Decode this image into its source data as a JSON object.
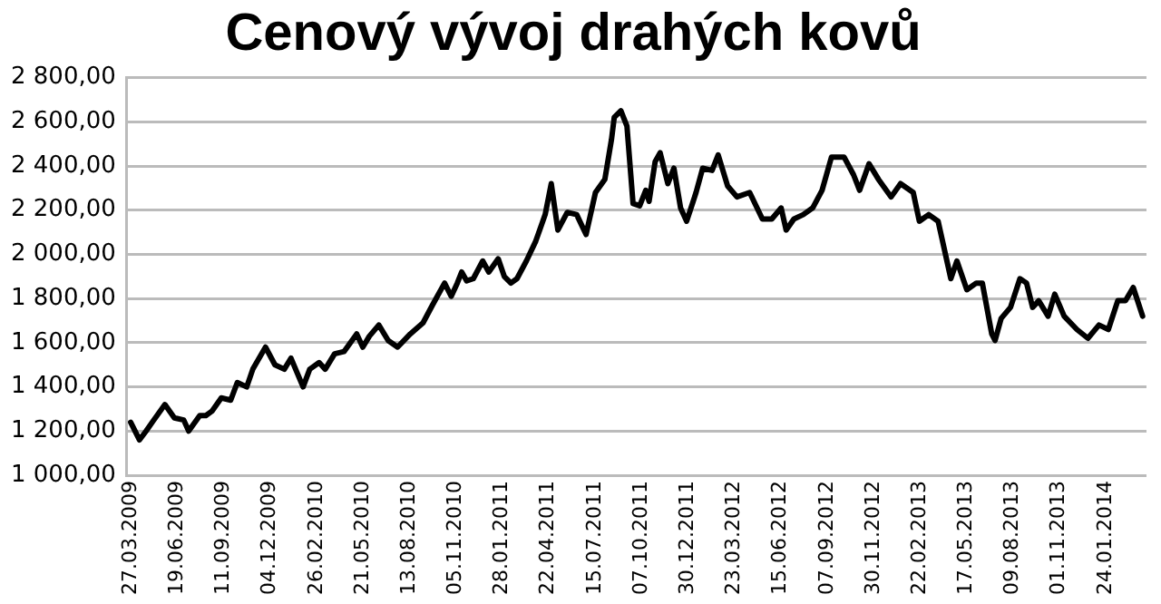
{
  "chart_data": {
    "type": "line",
    "title": "Cenový vývoj drahých kovů",
    "x": [
      "2009-03-27",
      "2009-04-12",
      "2009-04-24",
      "2009-05-05",
      "2009-05-28",
      "2009-06-14",
      "2009-07-01",
      "2009-07-10",
      "2009-07-30",
      "2009-08-10",
      "2009-08-21",
      "2009-09-07",
      "2009-09-24",
      "2009-10-06",
      "2009-10-23",
      "2009-11-03",
      "2009-11-26",
      "2009-12-13",
      "2009-12-30",
      "2010-01-11",
      "2010-02-02",
      "2010-02-14",
      "2010-03-03",
      "2010-03-14",
      "2010-03-31",
      "2010-04-17",
      "2010-05-10",
      "2010-05-21",
      "2010-06-02",
      "2010-06-19",
      "2010-07-06",
      "2010-07-23",
      "2010-08-15",
      "2010-09-07",
      "2010-09-24",
      "2010-10-16",
      "2010-10-28",
      "2010-11-08",
      "2010-11-16",
      "2010-11-25",
      "2010-12-07",
      "2010-12-24",
      "2011-01-04",
      "2011-01-21",
      "2011-02-01",
      "2011-02-13",
      "2011-02-24",
      "2011-03-13",
      "2011-03-30",
      "2011-04-16",
      "2011-04-27",
      "2011-05-09",
      "2011-05-26",
      "2011-06-12",
      "2011-06-29",
      "2011-07-16",
      "2011-08-02",
      "2011-08-14",
      "2011-08-19",
      "2011-08-31",
      "2011-09-11",
      "2011-09-22",
      "2011-10-04",
      "2011-10-15",
      "2011-10-21",
      "2011-11-01",
      "2011-11-10",
      "2011-11-24",
      "2011-12-05",
      "2011-12-17",
      "2011-12-28",
      "2012-01-14",
      "2012-01-26",
      "2012-02-12",
      "2012-02-23",
      "2012-03-11",
      "2012-03-28",
      "2012-04-20",
      "2012-05-13",
      "2012-05-30",
      "2012-06-16",
      "2012-06-25",
      "2012-07-09",
      "2012-07-26",
      "2012-08-12",
      "2012-08-29",
      "2012-09-15",
      "2012-10-08",
      "2012-10-25",
      "2012-11-05",
      "2012-11-22",
      "2012-12-09",
      "2013-01-01",
      "2013-01-18",
      "2013-02-10",
      "2013-02-21",
      "2013-03-10",
      "2013-03-27",
      "2013-04-19",
      "2013-04-30",
      "2013-05-18",
      "2013-06-04",
      "2013-06-15",
      "2013-07-02",
      "2013-07-08",
      "2013-07-19",
      "2013-08-05",
      "2013-08-22",
      "2013-09-03",
      "2013-09-14",
      "2013-09-25",
      "2013-10-12",
      "2013-10-24",
      "2013-11-10",
      "2013-12-03",
      "2013-12-23",
      "2014-01-12",
      "2014-01-29",
      "2014-02-15",
      "2014-03-01",
      "2014-03-15",
      "2014-04-01"
    ],
    "series": [
      {
        "color": "#000000",
        "values": [
          1240,
          1160,
          1200,
          1240,
          1320,
          1260,
          1250,
          1200,
          1270,
          1270,
          1290,
          1350,
          1340,
          1420,
          1400,
          1480,
          1580,
          1500,
          1480,
          1530,
          1400,
          1480,
          1510,
          1480,
          1550,
          1560,
          1640,
          1580,
          1630,
          1680,
          1610,
          1580,
          1640,
          1690,
          1770,
          1870,
          1810,
          1870,
          1920,
          1880,
          1890,
          1970,
          1920,
          1980,
          1900,
          1870,
          1890,
          1970,
          2060,
          2180,
          2320,
          2110,
          2190,
          2180,
          2090,
          2280,
          2340,
          2520,
          2620,
          2650,
          2580,
          2230,
          2220,
          2290,
          2240,
          2420,
          2460,
          2320,
          2390,
          2210,
          2150,
          2280,
          2390,
          2380,
          2450,
          2310,
          2260,
          2280,
          2160,
          2160,
          2210,
          2110,
          2160,
          2180,
          2210,
          2290,
          2440,
          2440,
          2360,
          2290,
          2410,
          2340,
          2260,
          2320,
          2280,
          2150,
          2180,
          2150,
          1890,
          1970,
          1840,
          1870,
          1870,
          1640,
          1610,
          1710,
          1760,
          1890,
          1870,
          1760,
          1790,
          1720,
          1820,
          1720,
          1660,
          1620,
          1680,
          1660,
          1790,
          1790,
          1850,
          1720
        ]
      }
    ],
    "xlim": [
      "2009-03-20",
      "2014-04-08"
    ],
    "xticks": [
      {
        "value": "2009-03-27",
        "label": "27.03.2009"
      },
      {
        "value": "2009-06-19",
        "label": "19.06.2009"
      },
      {
        "value": "2009-09-11",
        "label": "11.09.2009"
      },
      {
        "value": "2009-12-04",
        "label": "04.12.2009"
      },
      {
        "value": "2010-02-26",
        "label": "26.02.2010"
      },
      {
        "value": "2010-05-21",
        "label": "21.05.2010"
      },
      {
        "value": "2010-08-13",
        "label": "13.08.2010"
      },
      {
        "value": "2010-11-05",
        "label": "05.11.2010"
      },
      {
        "value": "2011-01-28",
        "label": "28.01.2011"
      },
      {
        "value": "2011-04-22",
        "label": "22.04.2011"
      },
      {
        "value": "2011-07-15",
        "label": "15.07.2011"
      },
      {
        "value": "2011-10-07",
        "label": "07.10.2011"
      },
      {
        "value": "2011-12-30",
        "label": "30.12.2011"
      },
      {
        "value": "2012-03-23",
        "label": "23.03.2012"
      },
      {
        "value": "2012-06-15",
        "label": "15.06.2012"
      },
      {
        "value": "2012-09-07",
        "label": "07.09.2012"
      },
      {
        "value": "2012-11-30",
        "label": "30.11.2012"
      },
      {
        "value": "2013-02-22",
        "label": "22.02.2013"
      },
      {
        "value": "2013-05-17",
        "label": "17.05.2013"
      },
      {
        "value": "2013-08-09",
        "label": "09.08.2013"
      },
      {
        "value": "2013-11-01",
        "label": "01.11.2013"
      },
      {
        "value": "2014-01-24",
        "label": "24.01.2014"
      }
    ],
    "ylim": [
      1000,
      2800
    ],
    "yticks": [
      {
        "value": 1000,
        "label": "1 000,00"
      },
      {
        "value": 1200,
        "label": "1 200,00"
      },
      {
        "value": 1400,
        "label": "1 400,00"
      },
      {
        "value": 1600,
        "label": "1 600,00"
      },
      {
        "value": 1800,
        "label": "1 800,00"
      },
      {
        "value": 2000,
        "label": "2 000,00"
      },
      {
        "value": 2200,
        "label": "2 200,00"
      },
      {
        "value": 2400,
        "label": "2 400,00"
      },
      {
        "value": 2600,
        "label": "2 600,00"
      },
      {
        "value": 2800,
        "label": "2 800,00"
      }
    ],
    "grid": "y",
    "legend": false,
    "marker": "none",
    "line_style": "solid"
  }
}
